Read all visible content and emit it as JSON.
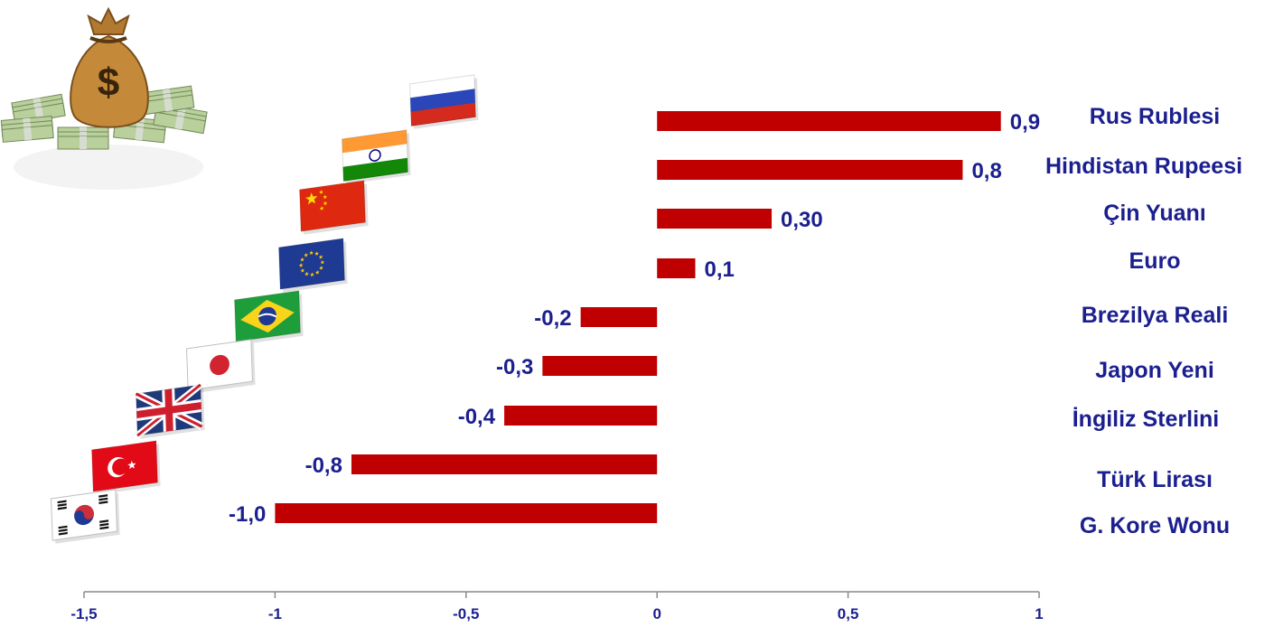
{
  "chart_data": {
    "type": "bar",
    "orientation": "horizontal",
    "categories": [
      "Rus Rublesi",
      "Hindistan Rupeesi",
      "Çin Yuanı",
      "Euro",
      "Brezilya Reali",
      "Japon Yeni",
      "İngiliz Sterlini",
      "Türk Lirası",
      "G. Kore Wonu"
    ],
    "values": [
      0.9,
      0.8,
      0.3,
      0.1,
      -0.2,
      -0.3,
      -0.4,
      -0.8,
      -1.0
    ],
    "value_labels": [
      "0,9",
      "0,8",
      "0,30",
      "0,1",
      "-0,2",
      "-0,3",
      "-0,4",
      "-0,8",
      "-1,0"
    ],
    "xlim": [
      -1.5,
      1
    ],
    "x_ticks": [
      -1.5,
      -1,
      -0.5,
      0,
      0.5,
      1
    ],
    "x_tick_labels": [
      "-1,5",
      "-1",
      "-0,5",
      "0",
      "0,5",
      "1"
    ],
    "bar_color": "#c00000",
    "label_color": "#1b1f8f",
    "grid": false,
    "flags": [
      "russia-flag",
      "india-flag",
      "china-flag",
      "eu-flag",
      "brazil-flag",
      "japan-flag",
      "uk-flag",
      "turkey-flag",
      "south-korea-flag"
    ],
    "decoration": "money-bag-icon"
  }
}
